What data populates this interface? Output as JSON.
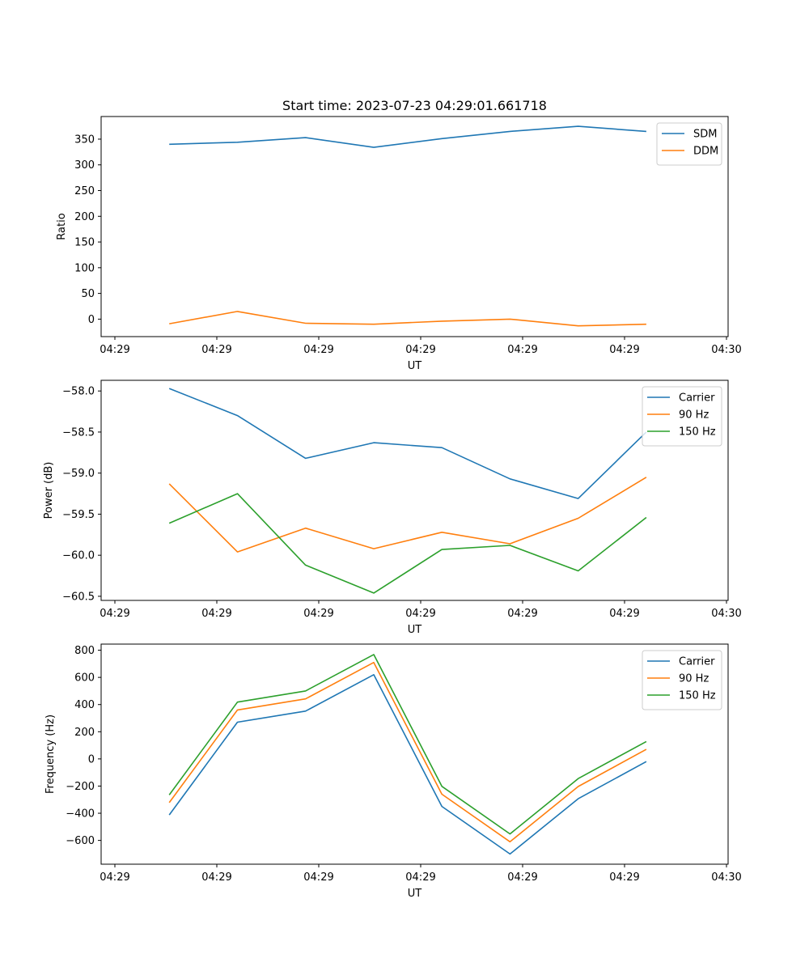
{
  "chart_data": [
    {
      "type": "line",
      "title": "Start time: 2023-07-23 04:29:01.661718",
      "xlabel": "UT",
      "ylabel": "Ratio",
      "x_tick_labels": [
        "04:29",
        "04:29",
        "04:29",
        "04:29",
        "04:29",
        "04:29",
        "04:30"
      ],
      "xlim": [
        0,
        92
      ],
      "x": [
        10,
        20,
        30,
        40,
        50,
        60,
        70,
        80
      ],
      "ylim": [
        -34,
        394
      ],
      "y_ticks": [
        0,
        50,
        100,
        150,
        200,
        250,
        300,
        350
      ],
      "y_tick_labels": [
        "0",
        "50",
        "100",
        "150",
        "200",
        "250",
        "300",
        "350"
      ],
      "legend_position": "upper right",
      "series": [
        {
          "name": "SDM",
          "color": "#1f77b4",
          "values": [
            340,
            344,
            353,
            334,
            351,
            365,
            375,
            365
          ]
        },
        {
          "name": "DDM",
          "color": "#ff7f0e",
          "values": [
            -9,
            15,
            -8,
            -10,
            -4,
            0,
            -13,
            -10
          ]
        }
      ]
    },
    {
      "type": "line",
      "title": "",
      "xlabel": "UT",
      "ylabel": "Power (dB)",
      "x_tick_labels": [
        "04:29",
        "04:29",
        "04:29",
        "04:29",
        "04:29",
        "04:29",
        "04:30"
      ],
      "xlim": [
        0,
        92
      ],
      "x": [
        10,
        20,
        30,
        40,
        50,
        60,
        70,
        80
      ],
      "ylim": [
        -60.55,
        -57.87
      ],
      "y_ticks": [
        -58.0,
        -58.5,
        -59.0,
        -59.5,
        -60.0,
        -60.5
      ],
      "y_tick_labels": [
        "−58.0",
        "−58.5",
        "−59.0",
        "−59.5",
        "−60.0",
        "−60.5"
      ],
      "legend_position": "upper right",
      "series": [
        {
          "name": "Carrier",
          "color": "#1f77b4",
          "values": [
            -57.97,
            -58.3,
            -58.82,
            -58.63,
            -58.69,
            -59.07,
            -59.31,
            -58.5
          ]
        },
        {
          "name": "90 Hz",
          "color": "#ff7f0e",
          "values": [
            -59.13,
            -59.96,
            -59.67,
            -59.92,
            -59.72,
            -59.86,
            -59.55,
            -59.05
          ]
        },
        {
          "name": "150 Hz",
          "color": "#2ca02c",
          "values": [
            -59.61,
            -59.25,
            -60.12,
            -60.46,
            -59.93,
            -59.88,
            -60.19,
            -59.54
          ]
        }
      ]
    },
    {
      "type": "line",
      "title": "",
      "xlabel": "UT",
      "ylabel": "Frequency (Hz)",
      "x_tick_labels": [
        "04:29",
        "04:29",
        "04:29",
        "04:29",
        "04:29",
        "04:29",
        "04:30"
      ],
      "xlim": [
        0,
        92
      ],
      "x": [
        10,
        20,
        30,
        40,
        50,
        60,
        70,
        80
      ],
      "ylim": [
        -775,
        845
      ],
      "y_ticks": [
        800,
        600,
        400,
        200,
        0,
        -200,
        -400,
        -600
      ],
      "y_tick_labels": [
        "800",
        "600",
        "400",
        "200",
        "0",
        "−200",
        "−400",
        "−600"
      ],
      "legend_position": "upper right",
      "series": [
        {
          "name": "Carrier",
          "color": "#1f77b4",
          "values": [
            -412,
            270,
            352,
            620,
            -350,
            -700,
            -293,
            -20
          ]
        },
        {
          "name": "90 Hz",
          "color": "#ff7f0e",
          "values": [
            -322,
            360,
            442,
            710,
            -260,
            -610,
            -203,
            70
          ]
        },
        {
          "name": "150 Hz",
          "color": "#2ca02c",
          "values": [
            -265,
            418,
            500,
            768,
            -202,
            -552,
            -145,
            128
          ]
        }
      ]
    }
  ]
}
